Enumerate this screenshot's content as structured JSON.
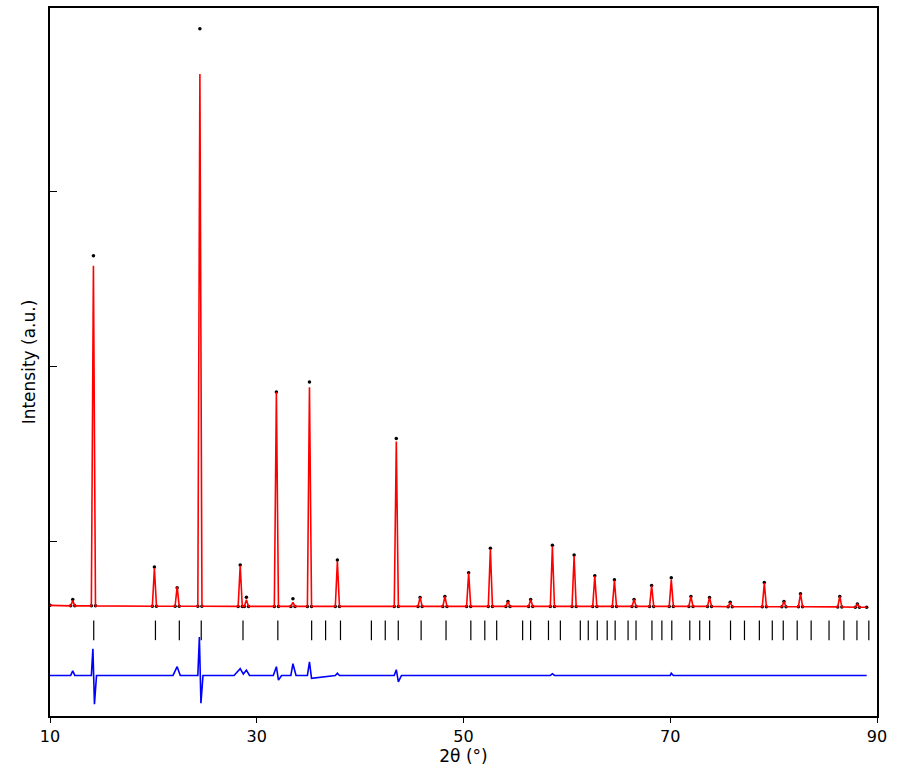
{
  "chart_data": {
    "type": "line",
    "x_label": "2θ (°)",
    "y_label": "Intensity (a.u.)",
    "xlim": [
      10,
      90
    ],
    "xticks": [
      10,
      30,
      50,
      70,
      90
    ],
    "ylim": [
      0,
      4050
    ],
    "yticks": [
      1000,
      2000,
      3000
    ],
    "tick_labels": "x",
    "grid": false,
    "series": [
      {
        "type": "scatter",
        "marker": "circle",
        "color": "#000000",
        "x": [
          10,
          12.0,
          12.2,
          12.4,
          14.0,
          14.2,
          14.4,
          19.9,
          20.1,
          20.3,
          22.1,
          22.3,
          22.5,
          24.3,
          24.5,
          24.7,
          28.2,
          28.4,
          28.6,
          28.8,
          29.0,
          29.2,
          31.7,
          31.9,
          32.1,
          33.3,
          33.5,
          33.7,
          34.9,
          35.1,
          35.3,
          37.6,
          37.8,
          38.0,
          43.3,
          43.5,
          43.7,
          45.6,
          45.8,
          46.0,
          48.0,
          48.2,
          48.4,
          50.3,
          50.5,
          50.7,
          52.4,
          52.6,
          52.8,
          54.1,
          54.3,
          54.5,
          56.3,
          56.5,
          56.7,
          58.4,
          58.6,
          58.8,
          60.5,
          60.7,
          60.9,
          62.5,
          62.7,
          62.9,
          64.4,
          64.6,
          64.8,
          66.3,
          66.5,
          66.7,
          68.0,
          68.2,
          68.4,
          69.9,
          70.1,
          70.3,
          71.8,
          72.0,
          72.2,
          73.6,
          73.8,
          74.0,
          75.6,
          75.8,
          76.0,
          78.9,
          79.1,
          79.3,
          80.8,
          81.0,
          81.2,
          82.4,
          82.6,
          82.8,
          86.2,
          86.4,
          86.6,
          87.9,
          88.1,
          88.3,
          89
        ],
        "values": [
          633,
          630,
          667,
          630,
          630,
          2633,
          630,
          628,
          853,
          628,
          628,
          734,
          628,
          628,
          3932,
          628,
          627,
          864,
          627,
          627,
          680,
          627,
          627,
          1853,
          627,
          627,
          670,
          627,
          627,
          1910,
          627,
          627,
          893,
          627,
          627,
          1588,
          627,
          627,
          678,
          627,
          627,
          684,
          627,
          627,
          819,
          627,
          627,
          960,
          627,
          627,
          655,
          627,
          627,
          667,
          627,
          627,
          977,
          627,
          627,
          921,
          627,
          627,
          802,
          627,
          627,
          780,
          627,
          627,
          667,
          627,
          627,
          746,
          627,
          627,
          791,
          627,
          627,
          684,
          627,
          627,
          678,
          627,
          625,
          650,
          625,
          625,
          763,
          625,
          625,
          655,
          625,
          625,
          700,
          625,
          624,
          684,
          624,
          622,
          640,
          622,
          622
        ]
      },
      {
        "type": "line",
        "color": "#ff0000",
        "x": [
          10,
          12.0,
          12.2,
          12.4,
          14.0,
          14.2,
          14.4,
          19.9,
          20.1,
          20.3,
          22.1,
          22.3,
          22.5,
          24.3,
          24.5,
          24.7,
          28.2,
          28.4,
          28.6,
          28.8,
          29.0,
          29.2,
          31.7,
          31.9,
          32.1,
          33.3,
          33.5,
          33.7,
          34.9,
          35.1,
          35.3,
          37.6,
          37.8,
          38.0,
          43.3,
          43.5,
          43.7,
          45.6,
          45.8,
          46.0,
          48.0,
          48.2,
          48.4,
          50.3,
          50.5,
          50.7,
          52.4,
          52.6,
          52.8,
          54.1,
          54.3,
          54.5,
          56.3,
          56.5,
          56.7,
          58.4,
          58.6,
          58.8,
          60.5,
          60.7,
          60.9,
          62.5,
          62.7,
          62.9,
          64.4,
          64.6,
          64.8,
          66.3,
          66.5,
          66.7,
          68.0,
          68.2,
          68.4,
          69.9,
          70.1,
          70.3,
          71.8,
          72.0,
          72.2,
          73.6,
          73.8,
          74.0,
          75.6,
          75.8,
          76.0,
          78.9,
          79.1,
          79.3,
          80.8,
          81.0,
          81.2,
          82.4,
          82.6,
          82.8,
          86.2,
          86.4,
          86.6,
          87.9,
          88.1,
          88.3,
          89
        ],
        "values": [
          633,
          630,
          660,
          630,
          630,
          2576,
          630,
          628,
          845,
          628,
          628,
          740,
          628,
          628,
          3672,
          628,
          627,
          860,
          627,
          627,
          665,
          627,
          627,
          1853,
          627,
          627,
          650,
          627,
          627,
          1881,
          627,
          627,
          885,
          627,
          627,
          1570,
          627,
          627,
          680,
          627,
          627,
          684,
          627,
          627,
          819,
          627,
          627,
          955,
          627,
          627,
          655,
          627,
          627,
          667,
          627,
          627,
          970,
          627,
          627,
          915,
          627,
          627,
          800,
          627,
          627,
          775,
          627,
          627,
          667,
          627,
          627,
          746,
          627,
          627,
          780,
          627,
          627,
          684,
          627,
          627,
          678,
          627,
          625,
          650,
          625,
          625,
          760,
          625,
          625,
          655,
          625,
          625,
          700,
          625,
          624,
          684,
          624,
          622,
          640,
          622,
          622
        ]
      },
      {
        "type": "scatter",
        "marker": "line-ns-open",
        "color": "#000000",
        "x": [
          14.23,
          20.2,
          22.51,
          24.63,
          28.67,
          32.04,
          35.31,
          36.66,
          38.1,
          41.09,
          42.43,
          43.69,
          45.9,
          48.31,
          50.71,
          52.06,
          53.21,
          55.72,
          56.49,
          58.22,
          59.37,
          61.3,
          62.07,
          62.94,
          63.9,
          64.67,
          65.92,
          66.69,
          68.23,
          69.19,
          70.15,
          71.89,
          72.85,
          73.81,
          75.83,
          77.18,
          78.62,
          79.87,
          80.93,
          82.28,
          83.63,
          85.36,
          86.8,
          88.06,
          89.21
        ],
        "values": [
          490,
          490,
          490,
          490,
          490,
          490,
          490,
          490,
          490,
          490,
          490,
          490,
          490,
          490,
          490,
          490,
          490,
          490,
          490,
          490,
          490,
          490,
          490,
          490,
          490,
          490,
          490,
          490,
          490,
          490,
          490,
          490,
          490,
          490,
          490,
          490,
          490,
          490,
          490,
          490,
          490,
          490,
          490,
          490,
          490
        ]
      },
      {
        "type": "line",
        "color": "#0000ff",
        "x": [
          10,
          12.0,
          12.2,
          12.4,
          14.0,
          14.15,
          14.3,
          14.5,
          21.9,
          22.3,
          22.6,
          24.3,
          24.45,
          24.6,
          24.8,
          27.8,
          28.4,
          28.7,
          29.0,
          29.3,
          31.6,
          31.9,
          32.1,
          32.4,
          33.3,
          33.5,
          33.8,
          34.9,
          35.1,
          35.3,
          37.6,
          37.8,
          38.0,
          43.3,
          43.5,
          43.7,
          44.0,
          58.4,
          58.6,
          58.8,
          70.0,
          70.1,
          70.3,
          89
        ],
        "values": [
          232,
          232,
          258,
          232,
          232,
          384,
          68,
          232,
          232,
          282,
          232,
          232,
          452,
          73,
          232,
          232,
          271,
          240,
          262,
          232,
          232,
          282,
          205,
          232,
          232,
          299,
          232,
          232,
          310,
          215,
          232,
          245,
          232,
          232,
          265,
          195,
          232,
          232,
          242,
          232,
          232,
          245,
          232,
          232
        ]
      }
    ]
  }
}
